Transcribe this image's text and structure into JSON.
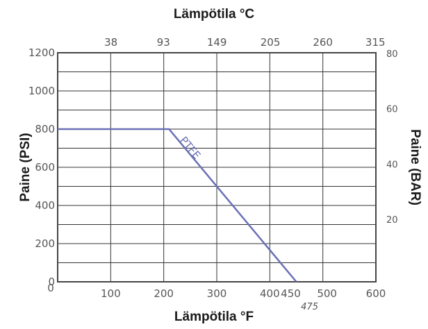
{
  "chart_data": {
    "type": "line",
    "title": "",
    "xlabel": "Lämpötila °F",
    "ylabel": "Paine (PSI)",
    "x2label": "Lämpötila °C",
    "y2label": "Paine (BAR)",
    "xlim": [
      0,
      600
    ],
    "ylim": [
      0,
      1200
    ],
    "x_ticks": [
      "0",
      "100",
      "200",
      "300",
      "400",
      "450",
      "500",
      "600"
    ],
    "x_extra_tick": "475",
    "y_ticks": [
      "0",
      "200",
      "400",
      "600",
      "800",
      "1000",
      "1200"
    ],
    "x2_ticks": [
      "38",
      "93",
      "149",
      "205",
      "260",
      "315"
    ],
    "y2_ticks": [
      "20",
      "40",
      "60",
      "80"
    ],
    "grid": true,
    "series": [
      {
        "name": "PTFE",
        "x": [
          0,
          210,
          450
        ],
        "y": [
          800,
          800,
          0
        ]
      }
    ],
    "colors": {
      "series": "#6a6fb5",
      "grid": "#333333",
      "text": "#1a1a1a"
    }
  }
}
